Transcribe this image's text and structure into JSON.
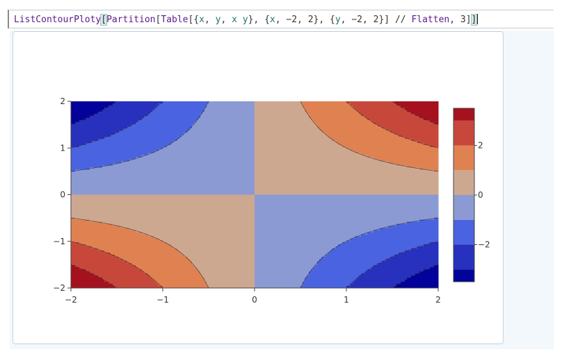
{
  "input": {
    "func": "ListContourPloty",
    "inner_func": "Partition",
    "table_func": "Table",
    "arg_x": "x",
    "arg_y": "y",
    "arg_xy": "x y",
    "min": "−2",
    "max": "2",
    "postfix": "Flatten",
    "n": "3"
  },
  "chart_data": {
    "type": "contour",
    "function": "x*y",
    "x_range": [
      -2,
      2
    ],
    "y_range": [
      -2,
      2
    ],
    "x_ticks": [
      "−2",
      "−1",
      "0",
      "1",
      "2"
    ],
    "y_ticks": [
      "−2",
      "−1",
      "0",
      "1",
      "2"
    ],
    "colorbar_ticks": [
      "2",
      "0",
      "−2"
    ],
    "levels": [
      -3.5,
      -3,
      -2,
      -1,
      0,
      1,
      2,
      3,
      3.5
    ],
    "colors": [
      "#03029b",
      "#2731be",
      "#4a63e0",
      "#8b9ad2",
      "#cda890",
      "#e08152",
      "#c8473b",
      "#a6111f"
    ]
  }
}
